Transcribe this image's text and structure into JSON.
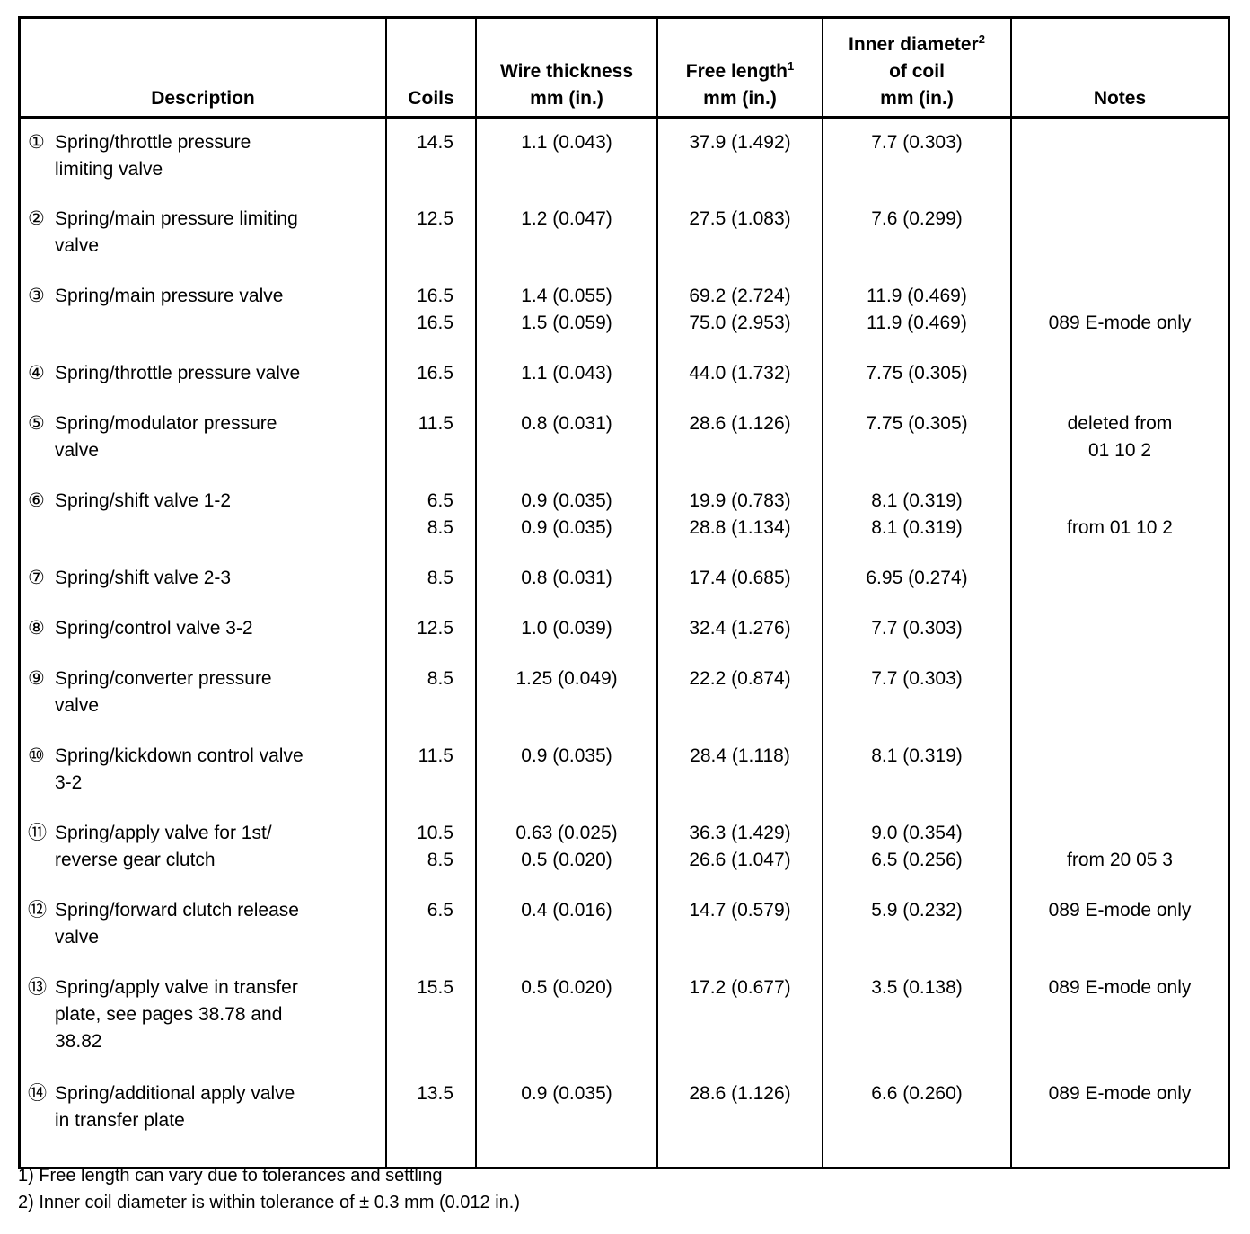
{
  "headers": [
    {
      "lines": [
        "Description"
      ]
    },
    {
      "lines": [
        "Coils"
      ]
    },
    {
      "lines": [
        "Wire thickness",
        "mm (in.)"
      ]
    },
    {
      "lines": [
        "Free length",
        "mm (in.)"
      ],
      "sup": "1"
    },
    {
      "lines": [
        "Inner diameter",
        "of coil",
        "mm (in.)"
      ],
      "sup": "2"
    },
    {
      "lines": [
        "Notes"
      ]
    }
  ],
  "rows": [
    {
      "num": "①",
      "desc": [
        "Spring/throttle pressure",
        "limiting valve"
      ],
      "coils": [
        "14.5"
      ],
      "wire": [
        "1.1 (0.043)"
      ],
      "free": [
        "37.9 (1.492)"
      ],
      "inner": [
        "7.7 (0.303)"
      ],
      "notes": []
    },
    {
      "num": "②",
      "desc": [
        "Spring/main pressure limiting",
        "valve"
      ],
      "coils": [
        "12.5"
      ],
      "wire": [
        "1.2 (0.047)"
      ],
      "free": [
        "27.5 (1.083)"
      ],
      "inner": [
        "7.6 (0.299)"
      ],
      "notes": []
    },
    {
      "num": "③",
      "desc": [
        "Spring/main pressure valve"
      ],
      "coils": [
        "16.5",
        "16.5"
      ],
      "wire": [
        "1.4 (0.055)",
        "1.5 (0.059)"
      ],
      "free": [
        "69.2 (2.724)",
        "75.0 (2.953)"
      ],
      "inner": [
        "11.9 (0.469)",
        "11.9 (0.469)"
      ],
      "notes": [
        "",
        "089 E-mode only"
      ]
    },
    {
      "num": "④",
      "desc": [
        "Spring/throttle pressure valve"
      ],
      "coils": [
        "16.5"
      ],
      "wire": [
        "1.1 (0.043)"
      ],
      "free": [
        "44.0 (1.732)"
      ],
      "inner": [
        "7.75 (0.305)"
      ],
      "notes": []
    },
    {
      "num": "⑤",
      "desc": [
        "Spring/modulator pressure",
        "valve"
      ],
      "coils": [
        "11.5"
      ],
      "wire": [
        "0.8 (0.031)"
      ],
      "free": [
        "28.6 (1.126)"
      ],
      "inner": [
        "7.75 (0.305)"
      ],
      "notes": [
        "deleted from",
        "01 10 2"
      ]
    },
    {
      "num": "⑥",
      "desc": [
        "Spring/shift valve 1-2"
      ],
      "coils": [
        "6.5",
        "8.5"
      ],
      "wire": [
        "0.9 (0.035)",
        "0.9 (0.035)"
      ],
      "free": [
        "19.9 (0.783)",
        "28.8 (1.134)"
      ],
      "inner": [
        "8.1 (0.319)",
        "8.1 (0.319)"
      ],
      "notes": [
        "",
        "from 01 10 2"
      ]
    },
    {
      "num": "⑦",
      "desc": [
        "Spring/shift valve 2-3"
      ],
      "coils": [
        "8.5"
      ],
      "wire": [
        "0.8 (0.031)"
      ],
      "free": [
        "17.4 (0.685)"
      ],
      "inner": [
        "6.95 (0.274)"
      ],
      "notes": []
    },
    {
      "num": "⑧",
      "desc": [
        "Spring/control valve 3-2"
      ],
      "coils": [
        "12.5"
      ],
      "wire": [
        "1.0 (0.039)"
      ],
      "free": [
        "32.4 (1.276)"
      ],
      "inner": [
        "7.7 (0.303)"
      ],
      "notes": []
    },
    {
      "num": "⑨",
      "desc": [
        "Spring/converter pressure",
        "valve"
      ],
      "coils": [
        "8.5"
      ],
      "wire": [
        "1.25 (0.049)"
      ],
      "free": [
        "22.2 (0.874)"
      ],
      "inner": [
        "7.7 (0.303)"
      ],
      "notes": []
    },
    {
      "num": "⑩",
      "desc": [
        "Spring/kickdown control valve",
        "3-2"
      ],
      "coils": [
        "11.5"
      ],
      "wire": [
        "0.9 (0.035)"
      ],
      "free": [
        "28.4 (1.118)"
      ],
      "inner": [
        "8.1 (0.319)"
      ],
      "notes": []
    },
    {
      "num": "⑪",
      "desc": [
        "Spring/apply valve for 1st/",
        "reverse gear clutch"
      ],
      "coils": [
        "10.5",
        "8.5"
      ],
      "wire": [
        "0.63 (0.025)",
        "0.5 (0.020)"
      ],
      "free": [
        "36.3 (1.429)",
        "26.6 (1.047)"
      ],
      "inner": [
        "9.0 (0.354)",
        "6.5 (0.256)"
      ],
      "notes": [
        "",
        "from 20 05 3"
      ]
    },
    {
      "num": "⑫",
      "desc": [
        "Spring/forward clutch release",
        "valve"
      ],
      "coils": [
        "6.5"
      ],
      "wire": [
        "0.4 (0.016)"
      ],
      "free": [
        "14.7 (0.579)"
      ],
      "inner": [
        "5.9 (0.232)"
      ],
      "notes": [
        "089 E-mode only"
      ]
    },
    {
      "num": "⑬",
      "desc": [
        "Spring/apply valve in transfer",
        "plate, see pages 38.78 and",
        "38.82"
      ],
      "coils": [
        "15.5"
      ],
      "wire": [
        "0.5 (0.020)"
      ],
      "free": [
        "17.2 (0.677)"
      ],
      "inner": [
        "3.5 (0.138)"
      ],
      "notes": [
        "089 E-mode only"
      ]
    },
    {
      "num": "⑭",
      "desc": [
        "Spring/additional apply valve",
        "in transfer plate"
      ],
      "coils": [
        "13.5"
      ],
      "wire": [
        "0.9 (0.035)"
      ],
      "free": [
        "28.6 (1.126)"
      ],
      "inner": [
        "6.6 (0.260)"
      ],
      "notes": [
        "089 E-mode only"
      ]
    }
  ],
  "footnotes": [
    "1) Free length can vary due to tolerances and settling",
    "2) Inner coil diameter is within tolerance of ± 0.3 mm (0.012 in.)"
  ]
}
